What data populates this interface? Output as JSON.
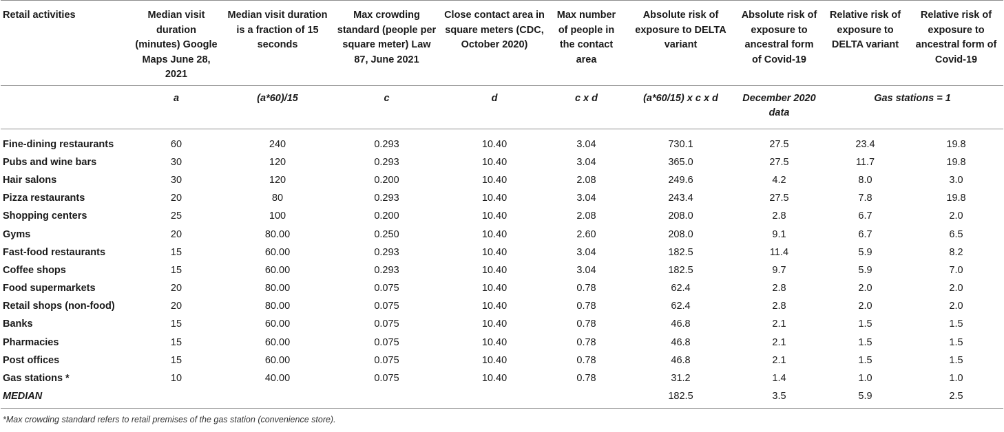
{
  "table": {
    "headers": [
      "Retail activities",
      "Median visit duration (minutes) Google Maps June 28, 2021",
      "Median visit duration is a fraction of 15 seconds",
      "Max crowding standard (people per square meter) Law 87, June 2021",
      "Close contact area in square meters (CDC, October 2020)",
      "Max number of people in the contact area",
      "Absolute risk of exposure to DELTA variant",
      "Absolute risk of exposure to ancestral form of Covid-19",
      "Relative risk of exposure to DELTA variant",
      "Relative risk of exposure to ancestral form of Covid-19"
    ],
    "formulas": {
      "a": "a",
      "b": "(a*60)/15",
      "c": "c",
      "d": "d",
      "cd": "c x d",
      "abs": "(a*60/15) x c x d",
      "dec": "December 2020 data",
      "rel": "Gas stations = 1"
    },
    "rows": [
      [
        "Fine-dining restaurants",
        "60",
        "240",
        "0.293",
        "10.40",
        "3.04",
        "730.1",
        "27.5",
        "23.4",
        "19.8"
      ],
      [
        "Pubs and wine bars",
        "30",
        "120",
        "0.293",
        "10.40",
        "3.04",
        "365.0",
        "27.5",
        "11.7",
        "19.8"
      ],
      [
        "Hair salons",
        "30",
        "120",
        "0.200",
        "10.40",
        "2.08",
        "249.6",
        "4.2",
        "8.0",
        "3.0"
      ],
      [
        "Pizza restaurants",
        "20",
        "80",
        "0.293",
        "10.40",
        "3.04",
        "243.4",
        "27.5",
        "7.8",
        "19.8"
      ],
      [
        "Shopping centers",
        "25",
        "100",
        "0.200",
        "10.40",
        "2.08",
        "208.0",
        "2.8",
        "6.7",
        "2.0"
      ],
      [
        "Gyms",
        "20",
        "80.00",
        "0.250",
        "10.40",
        "2.60",
        "208.0",
        "9.1",
        "6.7",
        "6.5"
      ],
      [
        "Fast-food restaurants",
        "15",
        "60.00",
        "0.293",
        "10.40",
        "3.04",
        "182.5",
        "11.4",
        "5.9",
        "8.2"
      ],
      [
        "Coffee shops",
        "15",
        "60.00",
        "0.293",
        "10.40",
        "3.04",
        "182.5",
        "9.7",
        "5.9",
        "7.0"
      ],
      [
        "Food supermarkets",
        "20",
        "80.00",
        "0.075",
        "10.40",
        "0.78",
        "62.4",
        "2.8",
        "2.0",
        "2.0"
      ],
      [
        "Retail shops (non-food)",
        "20",
        "80.00",
        "0.075",
        "10.40",
        "0.78",
        "62.4",
        "2.8",
        "2.0",
        "2.0"
      ],
      [
        "Banks",
        "15",
        "60.00",
        "0.075",
        "10.40",
        "0.78",
        "46.8",
        "2.1",
        "1.5",
        "1.5"
      ],
      [
        "Pharmacies",
        "15",
        "60.00",
        "0.075",
        "10.40",
        "0.78",
        "46.8",
        "2.1",
        "1.5",
        "1.5"
      ],
      [
        "Post offices",
        "15",
        "60.00",
        "0.075",
        "10.40",
        "0.78",
        "46.8",
        "2.1",
        "1.5",
        "1.5"
      ],
      [
        "Gas stations *",
        "10",
        "40.00",
        "0.075",
        "10.40",
        "0.78",
        "31.2",
        "1.4",
        "1.0",
        "1.0"
      ]
    ],
    "median": {
      "label": "MEDIAN",
      "abs_delta": "182.5",
      "abs_ancestral": "3.5",
      "rel_delta": "5.9",
      "rel_ancestral": "2.5"
    }
  },
  "footnote": "*Max crowding standard refers to retail premises of the gas station (convenience store)."
}
